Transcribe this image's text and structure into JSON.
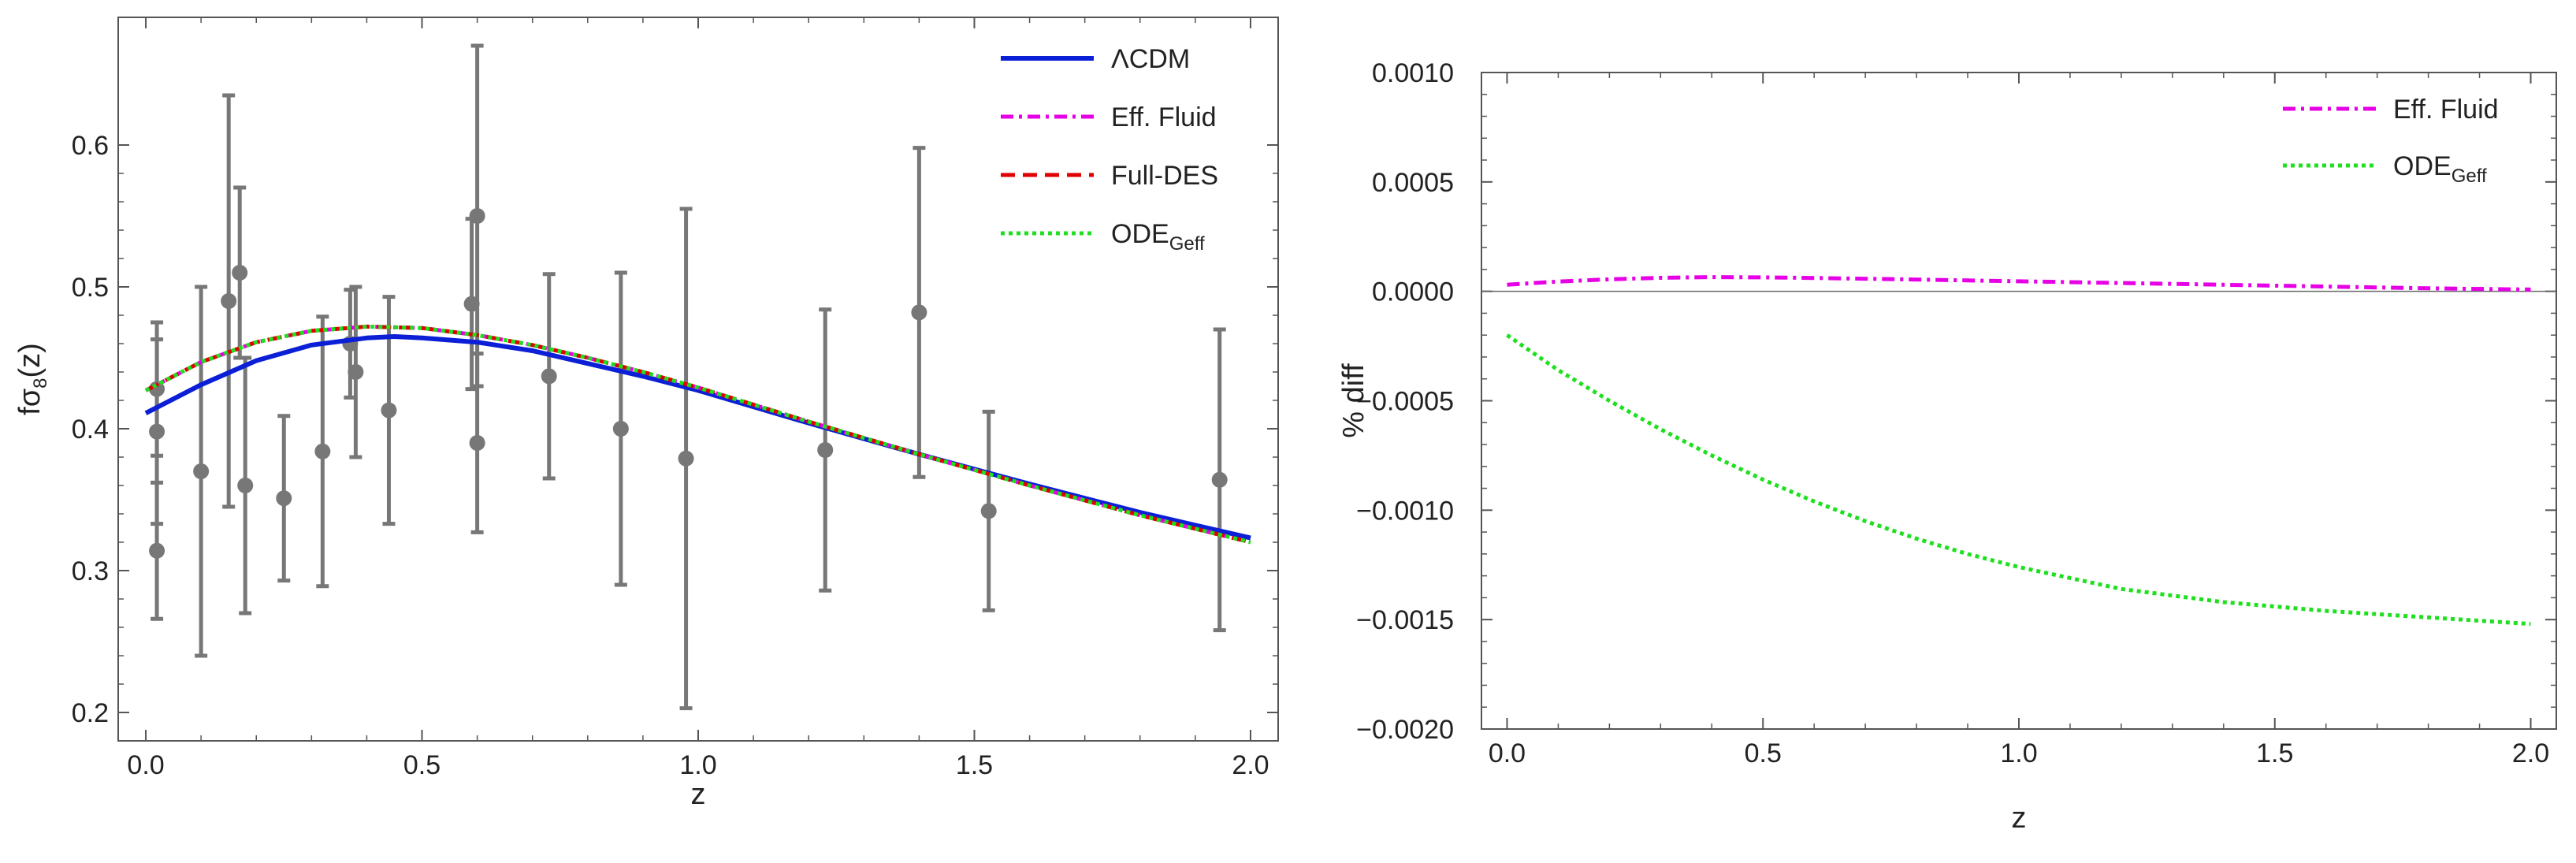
{
  "chart_data": [
    {
      "type": "line",
      "xlabel": "z",
      "ylabel": {
        "main": "fσ",
        "sub": "8",
        "tail": "(z)"
      },
      "xlim": [
        -0.05,
        2.05
      ],
      "ylim": [
        0.18,
        0.69
      ],
      "xticks": [
        0.0,
        0.5,
        1.0,
        1.5,
        2.0
      ],
      "xtick_labels": [
        "0.0",
        "0.5",
        "1.0",
        "1.5",
        "2.0"
      ],
      "yticks": [
        0.2,
        0.3,
        0.4,
        0.5,
        0.6
      ],
      "ytick_labels": [
        "0.2",
        "0.3",
        "0.4",
        "0.5",
        "0.6"
      ],
      "legend_position": "top-right",
      "series": [
        {
          "name": "ΛCDM",
          "color": "#0a1fd6",
          "dash": "solid",
          "x": [
            0.0,
            0.1,
            0.2,
            0.3,
            0.4,
            0.45,
            0.5,
            0.6,
            0.7,
            0.8,
            0.9,
            1.0,
            1.2,
            1.4,
            1.6,
            1.8,
            2.0
          ],
          "y": [
            0.411,
            0.431,
            0.448,
            0.459,
            0.464,
            0.465,
            0.464,
            0.461,
            0.455,
            0.446,
            0.437,
            0.427,
            0.404,
            0.382,
            0.361,
            0.341,
            0.323
          ]
        },
        {
          "name": "Eff. Fluid",
          "color": "#e600e6",
          "dash": "dashdot",
          "x": [
            0.0,
            0.1,
            0.2,
            0.3,
            0.4,
            0.5,
            0.6,
            0.7,
            0.8,
            0.9,
            1.0,
            1.2,
            1.4,
            1.6,
            1.8,
            2.0
          ],
          "y": [
            0.427,
            0.447,
            0.461,
            0.469,
            0.472,
            0.471,
            0.466,
            0.459,
            0.45,
            0.44,
            0.429,
            0.405,
            0.382,
            0.36,
            0.339,
            0.32
          ]
        },
        {
          "name": "Full-DES",
          "color": "#e00000",
          "dash": "dashed",
          "x": [
            0.0,
            0.1,
            0.2,
            0.3,
            0.4,
            0.5,
            0.6,
            0.7,
            0.8,
            0.9,
            1.0,
            1.2,
            1.4,
            1.6,
            1.8,
            2.0
          ],
          "y": [
            0.427,
            0.447,
            0.461,
            0.469,
            0.472,
            0.471,
            0.466,
            0.459,
            0.45,
            0.44,
            0.429,
            0.405,
            0.382,
            0.36,
            0.339,
            0.32
          ]
        },
        {
          "name": "ODE",
          "name_sub": "Geff",
          "color": "#1ee01e",
          "dash": "dotted",
          "x": [
            0.0,
            0.1,
            0.2,
            0.3,
            0.4,
            0.5,
            0.6,
            0.7,
            0.8,
            0.9,
            1.0,
            1.2,
            1.4,
            1.6,
            1.8,
            2.0
          ],
          "y": [
            0.427,
            0.447,
            0.461,
            0.469,
            0.472,
            0.471,
            0.466,
            0.459,
            0.45,
            0.44,
            0.429,
            0.405,
            0.382,
            0.36,
            0.339,
            0.32
          ]
        }
      ],
      "data_points": [
        {
          "z": 0.02,
          "y": 0.428,
          "err": 0.047
        },
        {
          "z": 0.02,
          "y": 0.398,
          "err": 0.065
        },
        {
          "z": 0.02,
          "y": 0.314,
          "err": 0.048
        },
        {
          "z": 0.1,
          "y": 0.37,
          "err": 0.13
        },
        {
          "z": 0.15,
          "y": 0.49,
          "err": 0.145
        },
        {
          "z": 0.17,
          "y": 0.51,
          "err": 0.06
        },
        {
          "z": 0.18,
          "y": 0.36,
          "err": 0.09
        },
        {
          "z": 0.25,
          "y": 0.351,
          "err": 0.058
        },
        {
          "z": 0.32,
          "y": 0.384,
          "err": 0.095
        },
        {
          "z": 0.37,
          "y": 0.46,
          "err": 0.038
        },
        {
          "z": 0.38,
          "y": 0.44,
          "err": 0.06
        },
        {
          "z": 0.44,
          "y": 0.413,
          "err": 0.08
        },
        {
          "z": 0.59,
          "y": 0.488,
          "err": 0.06
        },
        {
          "z": 0.6,
          "y": 0.55,
          "err": 0.12
        },
        {
          "z": 0.6,
          "y": 0.39,
          "err": 0.063
        },
        {
          "z": 0.73,
          "y": 0.437,
          "err": 0.072
        },
        {
          "z": 0.86,
          "y": 0.4,
          "err": 0.11
        },
        {
          "z": 0.978,
          "y": 0.379,
          "err": 0.176
        },
        {
          "z": 1.23,
          "y": 0.385,
          "err": 0.099
        },
        {
          "z": 1.4,
          "y": 0.482,
          "err": 0.116
        },
        {
          "z": 1.526,
          "y": 0.342,
          "err": 0.07
        },
        {
          "z": 1.944,
          "y": 0.364,
          "err": 0.106
        }
      ]
    },
    {
      "type": "line",
      "xlabel": "z",
      "ylabel": "% diff",
      "xlim": [
        -0.05,
        2.05
      ],
      "ylim": [
        -0.002,
        0.001
      ],
      "xticks": [
        0.0,
        0.5,
        1.0,
        1.5,
        2.0
      ],
      "xtick_labels": [
        "0.0",
        "0.5",
        "1.0",
        "1.5",
        "2.0"
      ],
      "yticks": [
        -0.002,
        -0.0015,
        -0.001,
        -0.0005,
        0.0,
        0.0005,
        0.001
      ],
      "ytick_labels": [
        "-0.0020",
        "-0.0015",
        "-0.0010",
        "-0.0005",
        "0.0000",
        "0.0005",
        "0.0010"
      ],
      "legend_position": "top-right",
      "series": [
        {
          "name": "Eff. Fluid",
          "color": "#e600e6",
          "dash": "dashdot",
          "x": [
            0.0,
            0.1,
            0.2,
            0.3,
            0.4,
            0.5,
            0.6,
            0.8,
            1.0,
            1.2,
            1.4,
            1.6,
            1.8,
            2.0
          ],
          "y": [
            3e-05,
            4.5e-05,
            5.5e-05,
            6.2e-05,
            6.5e-05,
            6.4e-05,
            6.1e-05,
            5.4e-05,
            4.6e-05,
            3.8e-05,
            3e-05,
            2.2e-05,
            1.4e-05,
            8e-06
          ]
        },
        {
          "name": "ODE",
          "name_sub": "Geff",
          "color": "#1ee01e",
          "dash": "dotted",
          "x": [
            0.0,
            0.1,
            0.2,
            0.3,
            0.4,
            0.5,
            0.6,
            0.7,
            0.8,
            0.9,
            1.0,
            1.2,
            1.4,
            1.6,
            1.8,
            2.0
          ],
          "y": [
            -0.0002,
            -0.00036,
            -0.0005,
            -0.00063,
            -0.00075,
            -0.00086,
            -0.00096,
            -0.00105,
            -0.00113,
            -0.0012,
            -0.00126,
            -0.00136,
            -0.00142,
            -0.00146,
            -0.00149,
            -0.00152
          ]
        }
      ]
    }
  ]
}
